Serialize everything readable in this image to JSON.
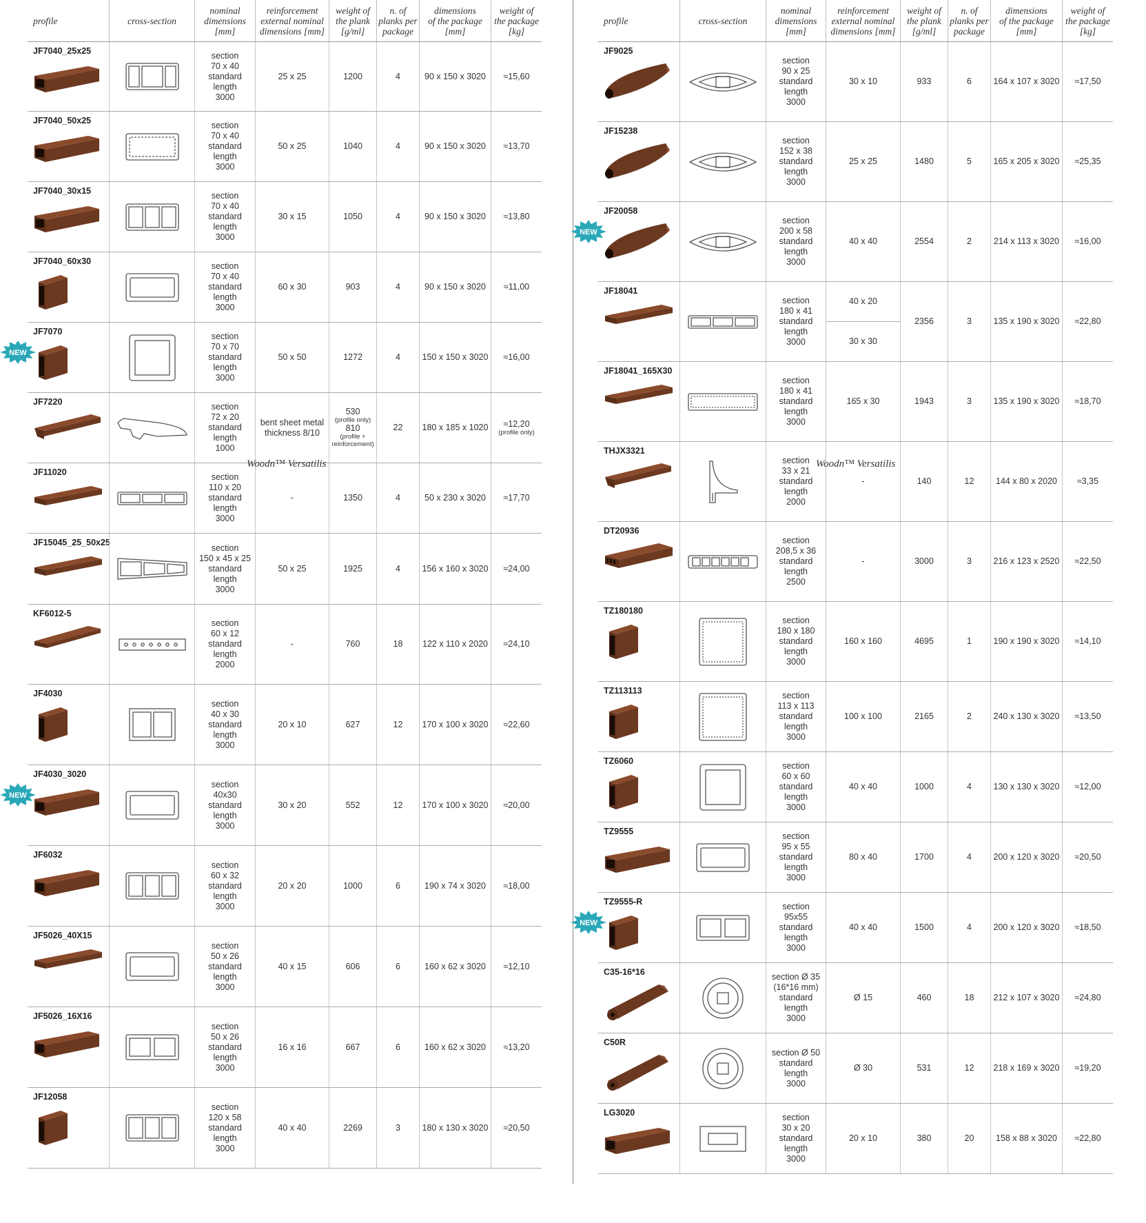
{
  "headers": [
    "profile",
    "cross-section",
    "nominal dimensions [mm]",
    "reinforcement external nominal dimensions [mm]",
    "weight of the plank [g/ml]",
    "n. of planks per package",
    "dimensions of the package [mm]",
    "weight of the package [kg]"
  ],
  "header_lines": {
    "profile": "profile",
    "cross": "cross-section",
    "nominal": "nominal\ndimensions\n[mm]",
    "reinf": "reinforcement\nexternal nominal\ndimensions [mm]",
    "weight": "weight of\nthe plank\n[g/ml]",
    "planks": "n. of\nplanks per\npackage",
    "pkgdim": "dimensions\nof the package\n[mm]",
    "pkgw": "weight of\nthe package\n[kg]"
  },
  "new_badge": "NEW",
  "brand_label": "Woodn™ Versatilis",
  "colors": {
    "wood": "#5a2f1a",
    "wood_light": "#8a4a2c",
    "badge": "#2aa8b8",
    "line": "#aaaaaa"
  },
  "left_rows": [
    {
      "code": "JF7040_25x25",
      "shape": "box",
      "xs": "cs-box4",
      "nominal": "section\n70 x 40\nstandard\nlength\n3000",
      "reinf": "25 x 25",
      "weight": "1200",
      "planks": "4",
      "pkg": "90 x 150 x 3020",
      "kg": "≈15,60"
    },
    {
      "code": "JF7040_50x25",
      "shape": "box",
      "xs": "cs-box2",
      "nominal": "section\n70 x 40\nstandard\nlength\n3000",
      "reinf": "50 x 25",
      "weight": "1040",
      "planks": "4",
      "pkg": "90 x 150 x 3020",
      "kg": "≈13,70"
    },
    {
      "code": "JF7040_30x15",
      "shape": "box",
      "xs": "cs-box3",
      "nominal": "section\n70 x 40\nstandard\nlength\n3000",
      "reinf": "30 x 15",
      "weight": "1050",
      "planks": "4",
      "pkg": "90 x 150 x 3020",
      "kg": "≈13,80"
    },
    {
      "code": "JF7040_60x30",
      "shape": "post",
      "xs": "cs-box1",
      "nominal": "section\n70 x 40\nstandard\nlength\n3000",
      "reinf": "60 x 30",
      "weight": "903",
      "planks": "4",
      "pkg": "90 x 150 x 3020",
      "kg": "≈11,00"
    },
    {
      "code": "JF7070",
      "shape": "post",
      "xs": "cs-square",
      "nominal": "section\n70 x 70\nstandard\nlength\n3000",
      "reinf": "50 x 50",
      "weight": "1272",
      "planks": "4",
      "pkg": "150 x 150 x 3020",
      "kg": "≈16,00",
      "is_new": true
    },
    {
      "code": "JF7220",
      "shape": "cap",
      "xs": "cs-cap",
      "nominal": "section\n72 x 20\nstandard\nlength\n1000",
      "reinf": "bent sheet metal\nthickness 8/10",
      "weight": "530",
      "weight_note1": "(profile only)",
      "weight2": "810",
      "weight_note2": "(profile +\nreinforcement)",
      "planks": "22",
      "pkg": "180 x 185 x 1020",
      "kg": "≈12,20",
      "kg_note": "(profile only)"
    },
    {
      "code": "JF11020",
      "shape": "board",
      "xs": "cs-flat3",
      "nominal": "section\n110 x 20\nstandard\nlength\n3000",
      "reinf": "-",
      "weight": "1350",
      "planks": "4",
      "pkg": "50 x 230 x 3020",
      "kg": "≈17,70"
    },
    {
      "code": "JF15045_25_50x25",
      "shape": "board",
      "xs": "cs-taper",
      "nominal": "section\n150 x 45 x 25\nstandard\nlength\n3000",
      "reinf": "50 x 25",
      "weight": "1925",
      "planks": "4",
      "pkg": "156 x 160 x 3020",
      "kg": "≈24,00"
    },
    {
      "code": "KF6012-5",
      "shape": "flat",
      "xs": "cs-holes",
      "nominal": "section\n60 x 12\nstandard\nlength\n2000",
      "reinf": "-",
      "weight": "760",
      "planks": "18",
      "pkg": "122 x 110 x 2020",
      "kg": "≈24,10"
    },
    {
      "code": "JF4030",
      "shape": "post",
      "xs": "cs-double",
      "nominal": "section\n40 x 30\nstandard\nlength\n3000",
      "reinf": "20 x 10",
      "weight": "627",
      "planks": "12",
      "pkg": "170 x 100 x 3020",
      "kg": "≈22,60"
    },
    {
      "code": "JF4030_3020",
      "shape": "box",
      "xs": "cs-box1",
      "nominal": "section\n40x30\nstandard\nlength\n3000",
      "reinf": "30 x 20",
      "weight": "552",
      "planks": "12",
      "pkg": "170 x 100 x 3020",
      "kg": "≈20,00",
      "is_new": true
    },
    {
      "code": "JF6032",
      "shape": "box",
      "xs": "cs-box3",
      "nominal": "section\n60 x 32\nstandard\nlength\n3000",
      "reinf": "20 x 20",
      "weight": "1000",
      "planks": "6",
      "pkg": "190 x 74 x 3020",
      "kg": "≈18,00"
    },
    {
      "code": "JF5026_40X15",
      "shape": "board",
      "xs": "cs-box1",
      "nominal": "section\n50 x 26\nstandard\nlength\n3000",
      "reinf": "40 x 15",
      "weight": "606",
      "planks": "6",
      "pkg": "160 x 62 x 3020",
      "kg": "≈12,10"
    },
    {
      "code": "JF5026_16X16",
      "shape": "box",
      "xs": "cs-box2b",
      "nominal": "section\n50 x 26\nstandard\nlength\n3000",
      "reinf": "16 x 16",
      "weight": "667",
      "planks": "6",
      "pkg": "160 x 62 x 3020",
      "kg": "≈13,20"
    },
    {
      "code": "JF12058",
      "shape": "post",
      "xs": "cs-box3",
      "nominal": "section\n120 x 58\nstandard\nlength\n3000",
      "reinf": "40 x 40",
      "weight": "2269",
      "planks": "3",
      "pkg": "180 x 130 x 3020",
      "kg": "≈20,50"
    }
  ],
  "right_rows": [
    {
      "code": "JF9025",
      "shape": "oval",
      "xs": "cs-oval",
      "nominal": "section\n90 x 25\nstandard\nlength\n3000",
      "reinf": "30 x 10",
      "weight": "933",
      "planks": "6",
      "pkg": "164 x 107 x 3020",
      "kg": "≈17,50"
    },
    {
      "code": "JF15238",
      "shape": "oval",
      "xs": "cs-oval",
      "nominal": "section\n152 x 38\nstandard\nlength\n3000",
      "reinf": "25 x 25",
      "weight": "1480",
      "planks": "5",
      "pkg": "165 x 205 x 3020",
      "kg": "≈25,35"
    },
    {
      "code": "JF20058",
      "shape": "oval",
      "xs": "cs-oval",
      "nominal": "section\n200 x 58\nstandard\nlength\n3000",
      "reinf": "40 x 40",
      "weight": "2554",
      "planks": "2",
      "pkg": "214 x 113 x 3020",
      "kg": "≈16,00",
      "is_new": true
    },
    {
      "code": "JF18041",
      "shape": "board",
      "xs": "cs-flat3",
      "nominal": "section\n180 x 41\nstandard\nlength\n3000",
      "reinf": "40 x 20",
      "reinf2": "30 x 30",
      "weight": "2356",
      "planks": "3",
      "pkg": "135 x 190 x 3020",
      "kg": "≈22,80"
    },
    {
      "code": "JF18041_165X30",
      "shape": "board",
      "xs": "cs-flat1",
      "nominal": "section\n180 x 41\nstandard\nlength\n3000",
      "reinf": "165 x 30",
      "weight": "1943",
      "planks": "3",
      "pkg": "135 x 190 x 3020",
      "kg": "≈18,70"
    },
    {
      "code": "THJX3321",
      "shape": "cap",
      "xs": "cs-angle",
      "nominal": "section\n33 x 21\nstandard\nlength\n2000",
      "reinf": "-",
      "weight": "140",
      "planks": "12",
      "pkg": "144 x 80 x 2020",
      "kg": "≈3,35"
    },
    {
      "code": "DT20936",
      "shape": "deck",
      "xs": "cs-deck",
      "nominal": "section\n208,5 x 36\nstandard\nlength\n2500",
      "reinf": "-",
      "weight": "3000",
      "planks": "3",
      "pkg": "216 x 123 x 2520",
      "kg": "≈22,50"
    },
    {
      "code": "TZ180180",
      "shape": "post",
      "xs": "cs-bigsq",
      "nominal": "section\n180 x 180\nstandard\nlength\n3000",
      "reinf": "160 x 160",
      "weight": "4695",
      "planks": "1",
      "pkg": "190 x 190 x 3020",
      "kg": "≈14,10"
    },
    {
      "code": "TZ113113",
      "shape": "post",
      "xs": "cs-bigsq",
      "nominal": "section\n113 x 113\nstandard\nlength\n3000",
      "reinf": "100 x 100",
      "weight": "2165",
      "planks": "2",
      "pkg": "240 x 130 x 3020",
      "kg": "≈13,50"
    },
    {
      "code": "TZ6060",
      "shape": "post",
      "xs": "cs-square",
      "nominal": "section\n60 x 60\nstandard\nlength\n3000",
      "reinf": "40 x 40",
      "weight": "1000",
      "planks": "4",
      "pkg": "130 x 130 x 3020",
      "kg": "≈12,00"
    },
    {
      "code": "TZ9555",
      "shape": "box",
      "xs": "cs-box1",
      "nominal": "section\n95 x 55\nstandard\nlength\n3000",
      "reinf": "80 x 40",
      "weight": "1700",
      "planks": "4",
      "pkg": "200 x 120 x 3020",
      "kg": "≈20,50"
    },
    {
      "code": "TZ9555-R",
      "shape": "post",
      "xs": "cs-box2b",
      "nominal": "section\n95x55\nstandard\nlength\n3000",
      "reinf": "40 x 40",
      "weight": "1500",
      "planks": "4",
      "pkg": "200 x 120 x 3020",
      "kg": "≈18,50",
      "is_new": true
    },
    {
      "code": "C35-16*16",
      "shape": "tube",
      "xs": "cs-round",
      "nominal": "section Ø 35\n(16*16 mm)\nstandard\nlength\n3000",
      "reinf": "Ø 15",
      "weight": "460",
      "planks": "18",
      "pkg": "212 x 107 x 3020",
      "kg": "≈24,80"
    },
    {
      "code": "C50R",
      "shape": "tube",
      "xs": "cs-round",
      "nominal": "section Ø 50\nstandard\nlength\n3000",
      "reinf": "Ø 30",
      "weight": "531",
      "planks": "12",
      "pkg": "218 x 169 x 3020",
      "kg": "≈19,20"
    },
    {
      "code": "LG3020",
      "shape": "box",
      "xs": "cs-box1s",
      "nominal": "section\n30 x 20\nstandard\nlength\n3000",
      "reinf": "20 x 10",
      "weight": "380",
      "planks": "20",
      "pkg": "158 x 88 x 3020",
      "kg": "≈22,80"
    }
  ]
}
